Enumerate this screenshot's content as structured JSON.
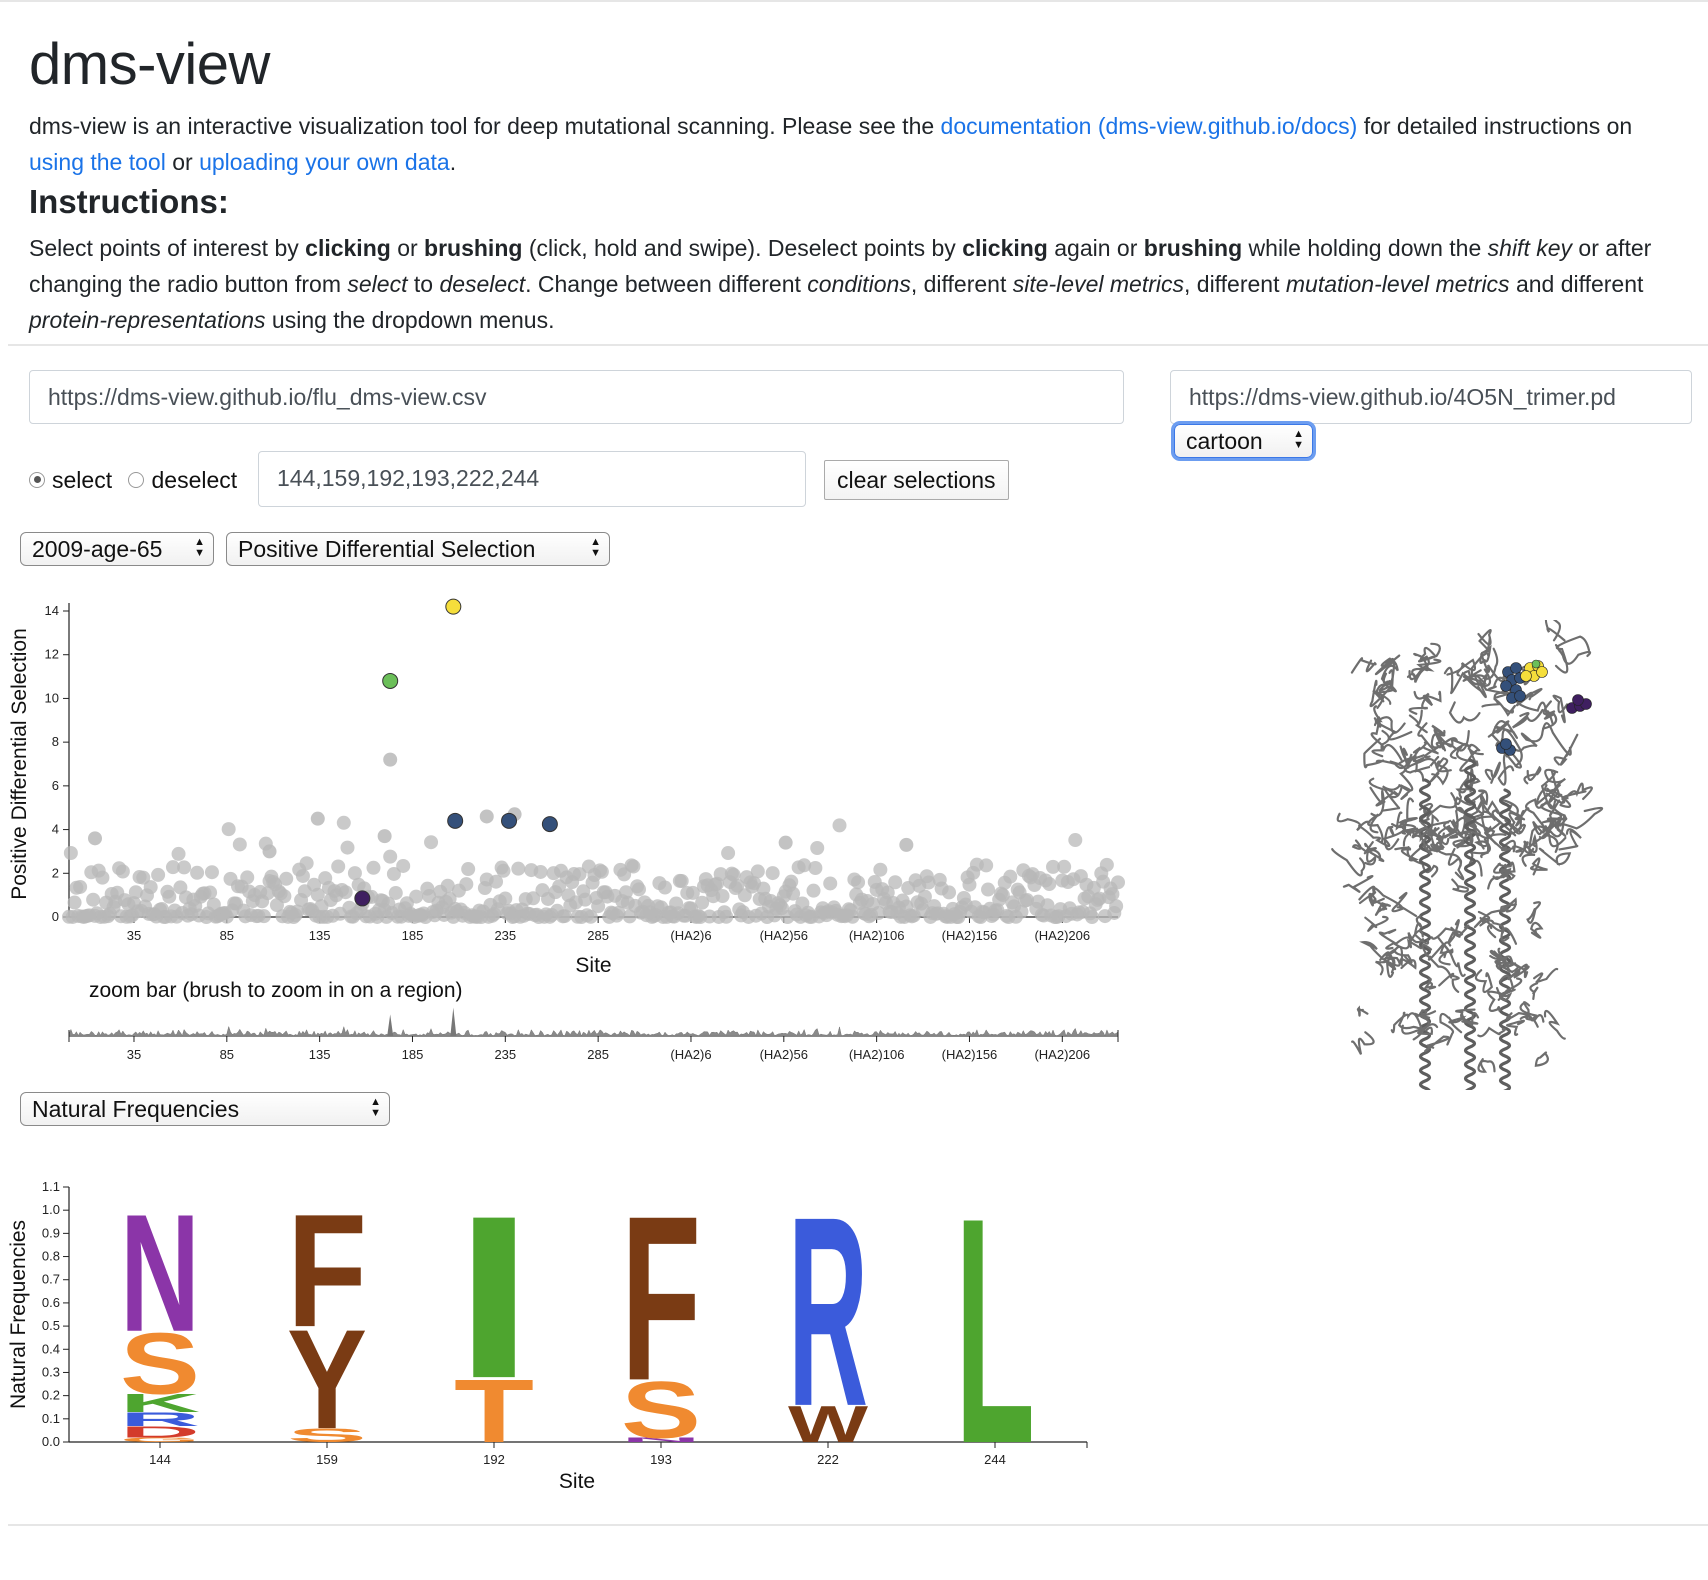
{
  "header": {
    "title": "dms-view",
    "desc_prefix": "dms-view is an interactive visualization tool for deep mutational scanning. Please see the ",
    "docs_link": "documentation (dms-view.github.io/docs)",
    "desc_middle": " for detailed instructions on ",
    "tool_link": "using the tool",
    "desc_or": " or ",
    "upload_link": "uploading your own data",
    "desc_end": "."
  },
  "instructions": {
    "heading": "Instructions:",
    "segments": [
      {
        "t": "Select points of interest by ",
        "s": ""
      },
      {
        "t": "clicking",
        "s": "b"
      },
      {
        "t": " or ",
        "s": ""
      },
      {
        "t": "brushing",
        "s": "b"
      },
      {
        "t": " (click, hold and swipe). Deselect points by ",
        "s": ""
      },
      {
        "t": "clicking",
        "s": "b"
      },
      {
        "t": " again or ",
        "s": ""
      },
      {
        "t": "brushing",
        "s": "b"
      },
      {
        "t": " while holding down the ",
        "s": ""
      },
      {
        "t": "shift key",
        "s": "i"
      },
      {
        "t": " or after changing the radio button from ",
        "s": ""
      },
      {
        "t": "select",
        "s": "i"
      },
      {
        "t": " to ",
        "s": ""
      },
      {
        "t": "deselect",
        "s": "i"
      },
      {
        "t": ". Change between different ",
        "s": ""
      },
      {
        "t": "conditions",
        "s": "i"
      },
      {
        "t": ", different ",
        "s": ""
      },
      {
        "t": "site-level metrics",
        "s": "i"
      },
      {
        "t": ", different ",
        "s": ""
      },
      {
        "t": "mutation-level metrics",
        "s": "i"
      },
      {
        "t": " and different ",
        "s": ""
      },
      {
        "t": "protein-representations",
        "s": "i"
      },
      {
        "t": " using the dropdown menus.",
        "s": ""
      }
    ]
  },
  "controls": {
    "data_url": "https://dms-view.github.io/flu_dms-view.csv",
    "pdb_url": "https://dms-view.github.io/4O5N_trimer.pd",
    "representation": "cartoon",
    "radio_select": "select",
    "radio_deselect": "deselect",
    "radio_selected": "select",
    "selected_sites": "144,159,192,193,222,244",
    "clear_button": "clear selections",
    "condition": "2009-age-65",
    "site_metric": "Positive Differential Selection",
    "mutation_metric": "Natural Frequencies",
    "zoom_label": "zoom bar (brush to zoom in on a region)"
  },
  "colors": {
    "link": "#1a73e8",
    "point_gray": "#b8b8b8",
    "sel_yellow": "#f5de3b",
    "sel_green": "#6bbf59",
    "sel_blue": "#34507a",
    "sel_purple": "#3f1f60",
    "aa_purple": "#8b35a8",
    "aa_orange": "#f08a30",
    "aa_brown": "#7a3b14",
    "aa_green": "#4ea52f",
    "aa_blue": "#3b5bdb",
    "aa_red": "#d33b2b"
  },
  "chart_data": [
    {
      "type": "scatter",
      "title": "",
      "xlabel": "Site",
      "ylabel": "Positive Differential Selection",
      "ylim": [
        0,
        14
      ],
      "yticks": [
        0,
        2,
        4,
        6,
        8,
        10,
        12,
        14
      ],
      "xticks": [
        "35",
        "85",
        "135",
        "185",
        "235",
        "285",
        "(HA2)6",
        "(HA2)56",
        "(HA2)106",
        "(HA2)156",
        "(HA2)206"
      ],
      "xtick_index": [
        35,
        85,
        135,
        185,
        235,
        285,
        335,
        385,
        435,
        485,
        535
      ],
      "n_sites": 566,
      "highlighted": [
        {
          "site": "144",
          "index": 158,
          "y": 0.85,
          "color": "#3f1f60"
        },
        {
          "site": "159",
          "index": 173,
          "y": 10.8,
          "color": "#6bbf59"
        },
        {
          "site": "192",
          "index": 207,
          "y": 14.2,
          "color": "#f5de3b"
        },
        {
          "site": "193",
          "index": 208,
          "y": 4.4,
          "color": "#34507a"
        },
        {
          "site": "222",
          "index": 237,
          "y": 4.4,
          "color": "#34507a"
        },
        {
          "site": "244",
          "index": 259,
          "y": 4.25,
          "color": "#34507a"
        }
      ],
      "notable_gray": [
        {
          "index": 173,
          "y": 7.2
        },
        {
          "index": 134,
          "y": 4.5
        },
        {
          "index": 170,
          "y": 3.7
        },
        {
          "index": 225,
          "y": 4.6
        },
        {
          "index": 240,
          "y": 4.7
        },
        {
          "index": 386,
          "y": 3.4
        },
        {
          "index": 451,
          "y": 3.3
        },
        {
          "index": 108,
          "y": 3.0
        },
        {
          "index": 14,
          "y": 3.6
        }
      ]
    },
    {
      "type": "area",
      "title": "zoom bar (brush to zoom in on a region)",
      "xticks": [
        "35",
        "85",
        "135",
        "185",
        "235",
        "285",
        "(HA2)6",
        "(HA2)56",
        "(HA2)106",
        "(HA2)156",
        "(HA2)206"
      ]
    },
    {
      "type": "logo",
      "xlabel": "Site",
      "ylabel": "Natural Frequencies",
      "ylim": [
        0,
        1.1
      ],
      "yticks": [
        "0.0",
        "0.1",
        "0.2",
        "0.3",
        "0.4",
        "0.5",
        "0.6",
        "0.7",
        "0.8",
        "0.9",
        "1.0",
        "1.1"
      ],
      "sites": [
        {
          "site": "144",
          "letters": [
            {
              "aa": "N",
              "freq": 0.52,
              "color": "#8b35a8"
            },
            {
              "aa": "S",
              "freq": 0.27,
              "color": "#f08a30"
            },
            {
              "aa": "K",
              "freq": 0.08,
              "color": "#4ea52f"
            },
            {
              "aa": "R",
              "freq": 0.06,
              "color": "#3b5bdb"
            },
            {
              "aa": "D",
              "freq": 0.05,
              "color": "#d33b2b"
            },
            {
              "aa": "G",
              "freq": 0.02,
              "color": "#f08a30"
            }
          ]
        },
        {
          "site": "159",
          "letters": [
            {
              "aa": "F",
              "freq": 0.5,
              "color": "#7a3b14"
            },
            {
              "aa": "Y",
              "freq": 0.44,
              "color": "#7a3b14"
            },
            {
              "aa": "S",
              "freq": 0.06,
              "color": "#f08a30"
            }
          ]
        },
        {
          "site": "192",
          "letters": [
            {
              "aa": "I",
              "freq": 0.72,
              "color": "#4ea52f"
            },
            {
              "aa": "T",
              "freq": 0.28,
              "color": "#f08a30"
            }
          ]
        },
        {
          "site": "193",
          "letters": [
            {
              "aa": "F",
              "freq": 0.73,
              "color": "#7a3b14"
            },
            {
              "aa": "S",
              "freq": 0.25,
              "color": "#f08a30"
            },
            {
              "aa": "N",
              "freq": 0.02,
              "color": "#8b35a8"
            }
          ]
        },
        {
          "site": "222",
          "letters": [
            {
              "aa": "R",
              "freq": 0.84,
              "color": "#3b5bdb"
            },
            {
              "aa": "W",
              "freq": 0.16,
              "color": "#7a3b14"
            }
          ]
        },
        {
          "site": "244",
          "letters": [
            {
              "aa": "L",
              "freq": 1.0,
              "color": "#4ea52f"
            }
          ]
        }
      ]
    }
  ]
}
